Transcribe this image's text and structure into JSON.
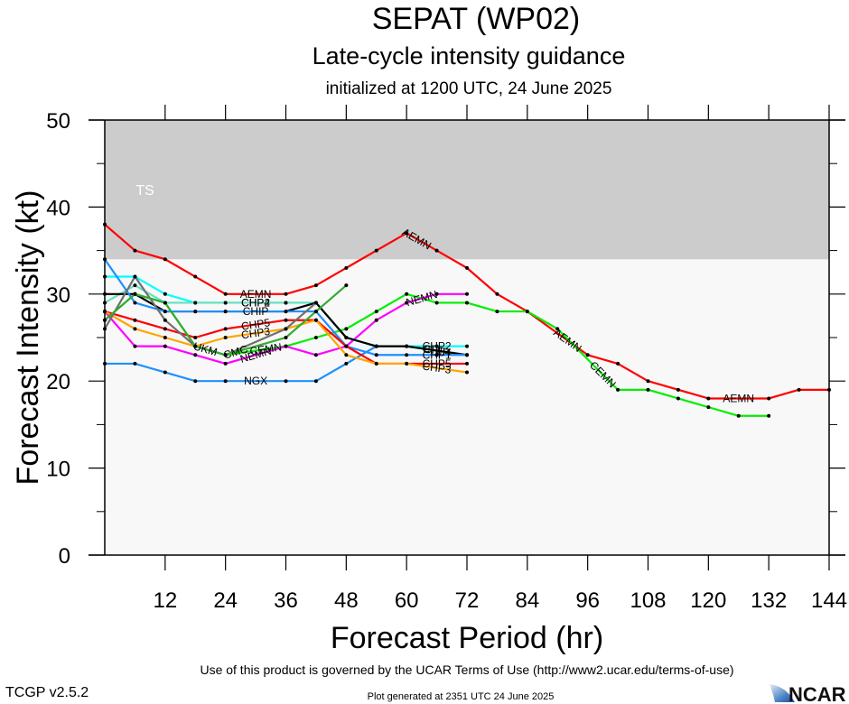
{
  "chart_data": {
    "type": "line",
    "title": "SEPAT (WP02)",
    "subtitle": "Late-cycle intensity guidance",
    "initialized": "initialized at 1200 UTC, 24 June 2025",
    "xlabel": "Forecast Period (hr)",
    "ylabel": "Forecast Intensity (kt)",
    "xlim": [
      0,
      144
    ],
    "ylim": [
      0,
      50
    ],
    "x_ticks": [
      12,
      24,
      36,
      48,
      60,
      72,
      84,
      96,
      108,
      120,
      132,
      144
    ],
    "y_ticks": [
      0,
      10,
      20,
      30,
      40,
      50
    ],
    "y_minor_ticks": [
      5,
      15,
      25,
      35,
      45
    ],
    "grid": false,
    "bands": [
      {
        "label": "TS",
        "from": 34,
        "to": 50,
        "color": "#cccccc"
      }
    ],
    "plot_background": "#f8f8f8",
    "series": [
      {
        "name": "AEMN",
        "color": "#ff0000",
        "x": [
          0,
          6,
          12,
          18,
          24,
          36,
          42,
          48,
          54,
          60,
          66,
          72,
          78,
          84,
          96,
          102,
          108,
          114,
          120,
          132,
          138,
          144
        ],
        "values": [
          38,
          35,
          34,
          32,
          30,
          30,
          31,
          33,
          35,
          37,
          35,
          33,
          30,
          28,
          23,
          22,
          20,
          19,
          18,
          18,
          19,
          19
        ],
        "label_at": [
          30,
          62,
          92,
          126
        ]
      },
      {
        "name": "CEMN",
        "color": "#00ee00",
        "x": [
          0,
          6,
          12,
          18,
          24,
          36,
          42,
          48,
          54,
          60,
          66,
          72,
          78,
          84,
          90,
          102,
          108,
          114,
          120,
          126,
          132
        ],
        "values": [
          27,
          30,
          29,
          24,
          23,
          24,
          25,
          26,
          28,
          30,
          29,
          29,
          28,
          28,
          26,
          19,
          19,
          18,
          17,
          16,
          16
        ],
        "label_at": [
          32,
          99
        ]
      },
      {
        "name": "NEMN",
        "color": "#ff00ff",
        "x": [
          0,
          6,
          12,
          18,
          24,
          36,
          42,
          48,
          54,
          60,
          66,
          72
        ],
        "values": [
          28,
          24,
          24,
          23,
          22,
          24,
          23,
          24,
          27,
          29,
          30,
          30
        ],
        "label_at": [
          30,
          63
        ]
      },
      {
        "name": "NGX",
        "color": "#1e90ff",
        "x": [
          0,
          6,
          12,
          18,
          24,
          36,
          42,
          48,
          54
        ],
        "values": [
          22,
          22,
          21,
          20,
          20,
          20,
          20,
          22,
          24
        ],
        "label_at": [
          30
        ]
      },
      {
        "name": "CHP2",
        "color": "#00ffff",
        "x": [
          0,
          6,
          12,
          18,
          24,
          36,
          42,
          48,
          54,
          60,
          66,
          72
        ],
        "values": [
          32,
          32,
          30,
          29,
          29,
          29,
          29,
          25,
          24,
          24,
          24,
          24
        ],
        "label_at": [
          30,
          66
        ]
      },
      {
        "name": "CHP4",
        "color": "#66e0c0",
        "x": [
          0,
          6,
          12,
          18,
          24,
          36,
          42,
          48,
          54,
          60,
          72
        ],
        "values": [
          29,
          31,
          29,
          29,
          29,
          29,
          29,
          25,
          24,
          24,
          23
        ],
        "label_at": [
          30,
          66
        ]
      },
      {
        "name": "CHIP",
        "color": "#000000",
        "x": [
          0,
          6,
          12,
          18,
          24,
          36,
          42,
          48,
          54,
          60,
          72
        ],
        "values": [
          30,
          30,
          28,
          28,
          28,
          28,
          29,
          25,
          24,
          24,
          23
        ],
        "label_at": [
          30,
          66
        ]
      },
      {
        "name": "CHP1",
        "color": "#1e90ff",
        "x": [
          0,
          6,
          12,
          18,
          24,
          36,
          42,
          48,
          54,
          60,
          66,
          72
        ],
        "values": [
          34,
          29,
          28,
          28,
          28,
          28,
          28,
          24,
          23,
          23,
          23,
          23
        ],
        "label_at": [
          66
        ]
      },
      {
        "name": "CHP5",
        "color": "#ff0000",
        "x": [
          0,
          6,
          12,
          18,
          24,
          36,
          42,
          48,
          54,
          60,
          72
        ],
        "values": [
          28,
          27,
          26,
          25,
          26,
          27,
          27,
          24,
          22,
          22,
          22
        ],
        "label_at": [
          30,
          66
        ]
      },
      {
        "name": "CHP3",
        "color": "#ffa500",
        "x": [
          0,
          6,
          12,
          18,
          24,
          36,
          42,
          48,
          54,
          60,
          72
        ],
        "values": [
          28,
          26,
          25,
          24,
          25,
          26,
          27,
          23,
          22,
          22,
          21
        ],
        "label_at": [
          30,
          66
        ]
      },
      {
        "name": "UKM",
        "color": "#707070",
        "x": [
          0,
          6,
          12,
          18,
          24,
          36,
          42
        ],
        "values": [
          26,
          32,
          27,
          24,
          23,
          26,
          29
        ],
        "label_at": [
          20
        ]
      },
      {
        "name": "CMC",
        "color": "#33aa33",
        "x": [
          0,
          6,
          12,
          18,
          24,
          36,
          42,
          48
        ],
        "values": [
          27,
          30,
          29,
          24,
          23,
          25,
          28,
          31
        ],
        "label_at": [
          26
        ]
      }
    ]
  },
  "footer": {
    "terms": "Use of this product is governed by the UCAR Terms of Use (http://www2.ucar.edu/terms-of-use)",
    "version": "TCGP v2.5.2",
    "generated": "Plot generated at 2351 UTC   24 June 2025",
    "logo_text": "NCAR"
  }
}
